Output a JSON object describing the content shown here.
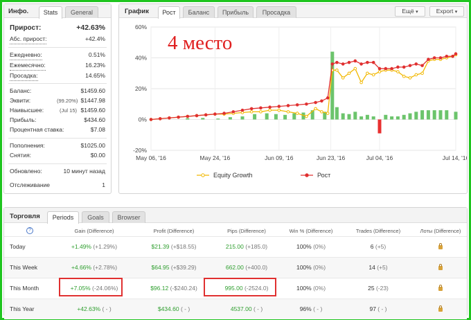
{
  "info_panel": {
    "title": "Инфо.",
    "tabs": [
      "Stats",
      "General"
    ],
    "gain_label": "Прирост:",
    "gain_value": "+42.63%",
    "abs_gain_label": "Абс. прирост:",
    "abs_gain_value": "+42.4%",
    "daily_label": "Ежедневно:",
    "daily_value": "0.51%",
    "monthly_label": "Ежемесячно:",
    "monthly_value": "16.23%",
    "drawdown_label": "Просадка:",
    "drawdown_value": "14.65%",
    "balance_label": "Баланс:",
    "balance_value": "$1459.60",
    "equity_label": "Эквити:",
    "equity_pct": "(99.20%)",
    "equity_value": "$1447.98",
    "highest_label": "Наивысшее:",
    "highest_date": "(Jul 15)",
    "highest_value": "$1459.60",
    "profit_label": "Прибыль:",
    "profit_value": "$434.60",
    "interest_label": "Процентная ставка:",
    "interest_value": "$7.08",
    "deposits_label": "Пополнения:",
    "deposits_value": "$1025.00",
    "withdrawals_label": "Снятия:",
    "withdrawals_value": "$0.00",
    "updated_label": "Обновлено:",
    "updated_value": "10 минут назад",
    "tracking_label": "Отслеживание",
    "tracking_value": "1"
  },
  "chart_panel": {
    "title": "График",
    "tabs": [
      "Рост",
      "Баланс",
      "Прибыль",
      "Просадка"
    ],
    "buttons": {
      "more": "Ещё",
      "export": "Export"
    },
    "overlay_text": "4 место",
    "legend": [
      "Equity Growth",
      "Рост"
    ]
  },
  "chart_data": {
    "type": "line",
    "x_tick_labels": [
      "May 06, '16",
      "May 24, '16",
      "Jun 09, '16",
      "Jun 23, '16",
      "Jul 04, '16",
      "Jul 14, '16"
    ],
    "x_tick_pos": [
      0,
      21,
      42,
      59,
      75,
      100
    ],
    "y_tick_labels": [
      "60%",
      "40%",
      "20%",
      "0%",
      "-20%"
    ],
    "y_tick_values": [
      60,
      40,
      20,
      0,
      -20
    ],
    "ylim": [
      -20,
      60
    ],
    "series": [
      {
        "name": "Equity Growth",
        "color": "#f2b800",
        "x": [
          0,
          3,
          6,
          9,
          12,
          15,
          18,
          21,
          24,
          27,
          30,
          33,
          36,
          39,
          42,
          45,
          48,
          51,
          54,
          56,
          58,
          59.5,
          61,
          63,
          65,
          67,
          69,
          71,
          73,
          75,
          77,
          79,
          81,
          83,
          85,
          87,
          89,
          91,
          93,
          95,
          97,
          99,
          100
        ],
        "y": [
          0,
          0.5,
          1,
          1.5,
          2,
          2.5,
          3,
          3.5,
          3.5,
          4,
          4.5,
          5,
          5,
          6,
          6,
          5,
          4,
          2,
          7,
          5,
          4,
          32,
          32,
          27,
          30,
          33,
          24,
          30,
          29,
          31,
          32,
          32,
          31,
          28,
          27,
          29,
          30,
          38,
          39,
          39,
          40,
          41,
          42
        ]
      },
      {
        "name": "Рост",
        "color": "#e03030",
        "x": [
          0,
          3,
          6,
          9,
          12,
          15,
          18,
          21,
          24,
          27,
          30,
          33,
          36,
          39,
          42,
          45,
          48,
          51,
          54,
          56,
          58,
          59.5,
          61,
          63,
          65,
          67,
          69,
          71,
          73,
          75,
          77,
          79,
          81,
          83,
          85,
          87,
          89,
          91,
          93,
          95,
          97,
          99,
          100
        ],
        "y": [
          0,
          0.5,
          1,
          1.5,
          2,
          2.5,
          3,
          3.5,
          4,
          5,
          6,
          7,
          7.5,
          8,
          8.5,
          9,
          9.5,
          10,
          11,
          12,
          14,
          36,
          37,
          36,
          37,
          38,
          36,
          37,
          37,
          33,
          33,
          33,
          34,
          34,
          35,
          36,
          35,
          39,
          40,
          40,
          41,
          41,
          42.6
        ]
      }
    ],
    "bars": {
      "color": "#6cc46c",
      "x": [
        12,
        17,
        22,
        26,
        30,
        34,
        38,
        41,
        44,
        47,
        50,
        53,
        57,
        59.5,
        61,
        63,
        65,
        67,
        69,
        71,
        73,
        75,
        77,
        79,
        81,
        83,
        85,
        87,
        89,
        91,
        93,
        95,
        97,
        100
      ],
      "y": [
        0.8,
        1,
        0.6,
        1.5,
        2,
        3.5,
        4,
        3.5,
        3,
        4,
        4.5,
        6,
        5,
        44,
        8,
        4,
        3.5,
        5,
        2,
        3,
        2,
        -9,
        3,
        2,
        2,
        3,
        4,
        5,
        6,
        6,
        6,
        6,
        6,
        5
      ]
    },
    "grid": true,
    "legend_position": "bottom"
  },
  "trading_panel": {
    "title": "Торговля",
    "tabs": [
      "Periods",
      "Goals",
      "Browser"
    ],
    "columns": [
      "Gain (Difference)",
      "Profit (Difference)",
      "Pips (Difference)",
      "Win % (Difference)",
      "Trades (Difference)",
      "Лоты (Difference)"
    ],
    "rows": [
      {
        "period": "Today",
        "gain": "+1.49%",
        "gain_diff": "(+1.29%)",
        "profit": "$21.39",
        "profit_diff": "(+$18.55)",
        "pips": "215.00",
        "pips_diff": "(+185.0)",
        "win": "100%",
        "win_diff": "(0%)",
        "trades": "6",
        "trades_diff": "(+5)"
      },
      {
        "period": "This Week",
        "gain": "+4.66%",
        "gain_diff": "(+2.78%)",
        "profit": "$64.95",
        "profit_diff": "(+$39.29)",
        "pips": "662.00",
        "pips_diff": "(+400.0)",
        "win": "100%",
        "win_diff": "(0%)",
        "trades": "14",
        "trades_diff": "(+5)"
      },
      {
        "period": "This Month",
        "gain": "+7.05%",
        "gain_diff": "(-24.06%)",
        "profit": "$96.12",
        "profit_diff": "(-$240.24)",
        "pips": "995.00",
        "pips_diff": "(-2524.0)",
        "win": "100%",
        "win_diff": "(0%)",
        "trades": "25",
        "trades_diff": "(-23)"
      },
      {
        "period": "This Year",
        "gain": "+42.63%",
        "gain_diff": "( - )",
        "profit": "$434.60",
        "profit_diff": "( - )",
        "pips": "4537.00",
        "pips_diff": "( - )",
        "win": "96%",
        "win_diff": "( - )",
        "trades": "97",
        "trades_diff": "( - )"
      }
    ]
  }
}
